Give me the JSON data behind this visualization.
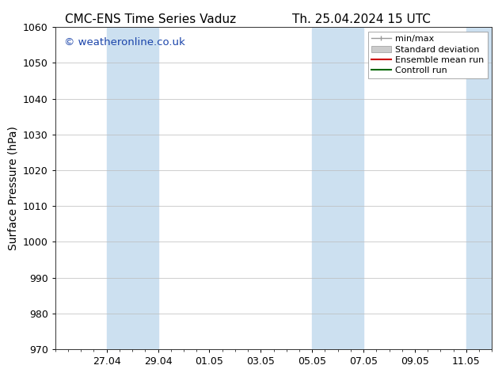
{
  "title_left": "CMC-ENS Time Series Vaduz",
  "title_right": "Th. 25.04.2024 15 UTC",
  "ylabel": "Surface Pressure (hPa)",
  "ylim": [
    970,
    1060
  ],
  "yticks": [
    970,
    980,
    990,
    1000,
    1010,
    1020,
    1030,
    1040,
    1050,
    1060
  ],
  "xtick_labels": [
    "27.04",
    "29.04",
    "01.05",
    "03.05",
    "05.05",
    "07.05",
    "09.05",
    "11.05"
  ],
  "xtick_positions": [
    2,
    4,
    6,
    8,
    10,
    12,
    14,
    16
  ],
  "xlim": [
    0,
    17
  ],
  "shaded_bands": [
    {
      "x_start": 2,
      "x_end": 4
    },
    {
      "x_start": 10,
      "x_end": 12
    },
    {
      "x_start": 16,
      "x_end": 17
    }
  ],
  "shaded_color": "#cce0f0",
  "background_color": "#ffffff",
  "grid_color": "#bbbbbb",
  "watermark_text": "© weatheronline.co.uk",
  "watermark_color": "#1a44aa",
  "legend_items": [
    {
      "label": "min/max",
      "color": "#aaaaaa",
      "style": "errorbar"
    },
    {
      "label": "Standard deviation",
      "color": "#bbbbbb",
      "style": "fill"
    },
    {
      "label": "Ensemble mean run",
      "color": "#cc0000",
      "style": "line"
    },
    {
      "label": "Controll run",
      "color": "#006600",
      "style": "line"
    }
  ],
  "title_fontsize": 11,
  "tick_fontsize": 9,
  "ylabel_fontsize": 10,
  "legend_fontsize": 8,
  "watermark_fontsize": 9.5
}
